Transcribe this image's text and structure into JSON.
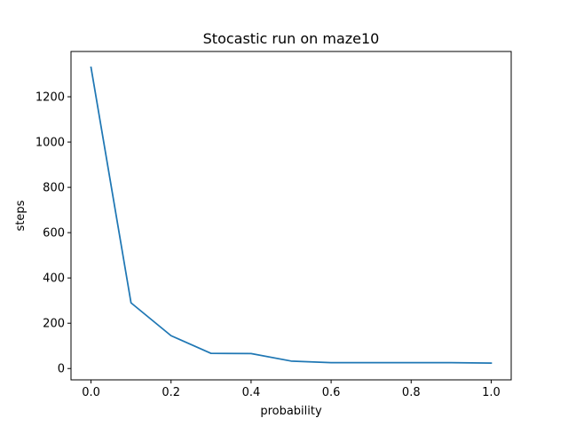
{
  "chart_data": {
    "type": "line",
    "title": "Stocastic run on maze10",
    "xlabel": "probability",
    "ylabel": "steps",
    "xlim": [
      -0.05,
      1.05
    ],
    "ylim": [
      -50,
      1400
    ],
    "xticks": [
      0.0,
      0.2,
      0.4,
      0.6,
      0.8,
      1.0
    ],
    "xtick_labels": [
      "0.0",
      "0.2",
      "0.4",
      "0.6",
      "0.8",
      "1.0"
    ],
    "yticks": [
      0,
      200,
      400,
      600,
      800,
      1000,
      1200
    ],
    "ytick_labels": [
      "0",
      "200",
      "400",
      "600",
      "800",
      "1000",
      "1200"
    ],
    "grid": false,
    "series": [
      {
        "color": "#1f77b4",
        "x": [
          0.0,
          0.1,
          0.2,
          0.3,
          0.4,
          0.5,
          0.6,
          0.7,
          0.8,
          0.9,
          1.0
        ],
        "y": [
          1330,
          290,
          145,
          67,
          66,
          33,
          26,
          26,
          26,
          26,
          24
        ]
      }
    ]
  }
}
